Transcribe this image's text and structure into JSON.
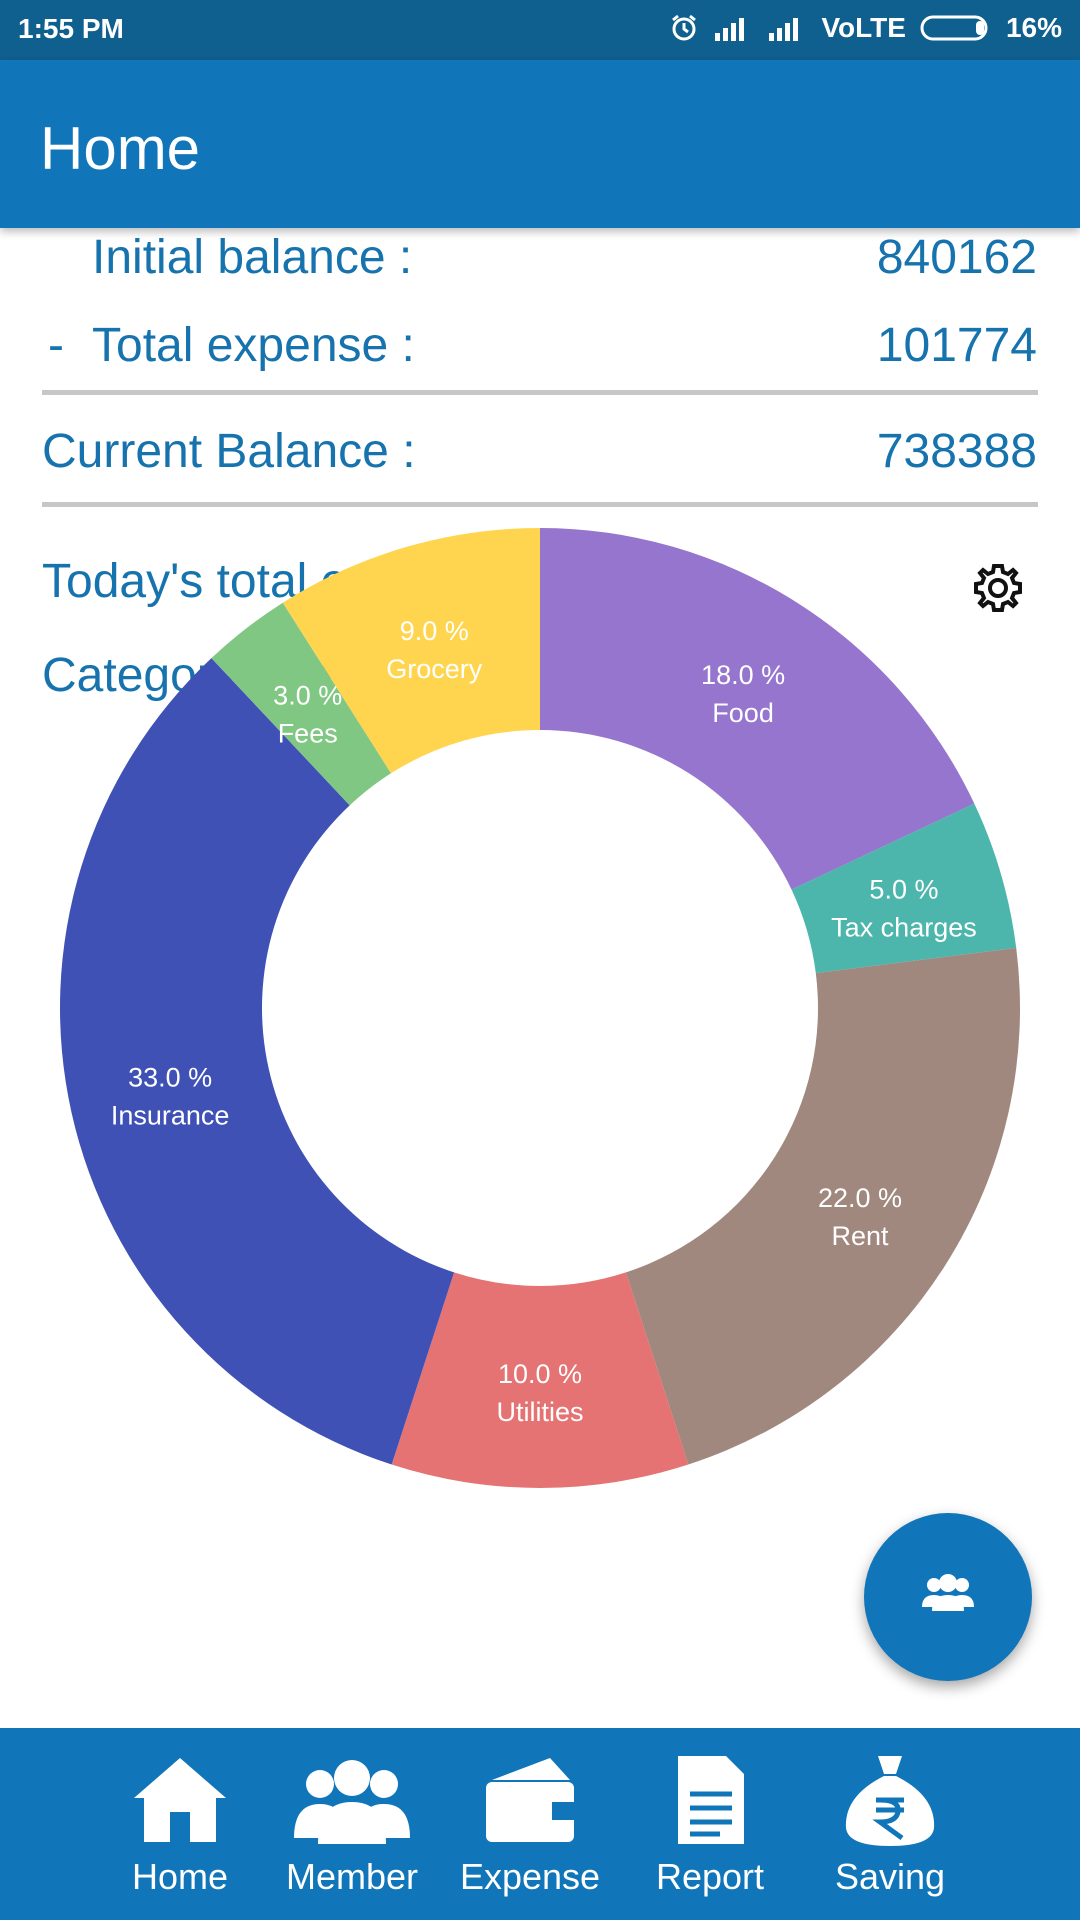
{
  "status_bar": {
    "time": "1:55 PM",
    "network": "VoLTE",
    "battery": "16%",
    "icons": [
      "alarm-icon",
      "signal-icon",
      "signal-icon",
      "battery-icon"
    ]
  },
  "app_bar": {
    "title": "Home"
  },
  "summary": {
    "initial_balance_label": "Initial balance :",
    "initial_balance_value": "840162",
    "minus_sign": "-",
    "total_expense_label": "Total expense :",
    "total_expense_value": "101774",
    "current_balance_label": "Current Balance :",
    "current_balance_value": "738388",
    "today_label": "Today's total expense :",
    "categorywise_label": "Categorywise Expense :"
  },
  "colors": {
    "primary": "#1075b9",
    "status_bar": "#0f5f8f",
    "text_blue": "#1673ad"
  },
  "chart_data": {
    "type": "pie",
    "donut": true,
    "slices": [
      {
        "label": "Food",
        "value": 18.0,
        "text": "18.0 %",
        "color": "#9575cd"
      },
      {
        "label": "Tax charges",
        "value": 5.0,
        "text": "5.0 %",
        "color": "#4db6ac"
      },
      {
        "label": "Rent",
        "value": 22.0,
        "text": "22.0 %",
        "color": "#a1887f"
      },
      {
        "label": "Utilities",
        "value": 10.0,
        "text": "10.0 %",
        "color": "#e57373"
      },
      {
        "label": "Insurance",
        "value": 33.0,
        "text": "33.0 %",
        "color": "#3f51b5"
      },
      {
        "label": "Fees",
        "value": 3.0,
        "text": "3.0 %",
        "color": "#81c784"
      },
      {
        "label": "Grocery",
        "value": 9.0,
        "text": "9.0 %",
        "color": "#ffd54f"
      }
    ]
  },
  "fab": {
    "icon": "group-icon"
  },
  "bottom_nav": {
    "items": [
      {
        "label": "Home",
        "icon": "home-icon"
      },
      {
        "label": "Member",
        "icon": "member-icon"
      },
      {
        "label": "Expense",
        "icon": "wallet-icon"
      },
      {
        "label": "Report",
        "icon": "report-icon"
      },
      {
        "label": "Saving",
        "icon": "money-bag-icon"
      }
    ]
  }
}
